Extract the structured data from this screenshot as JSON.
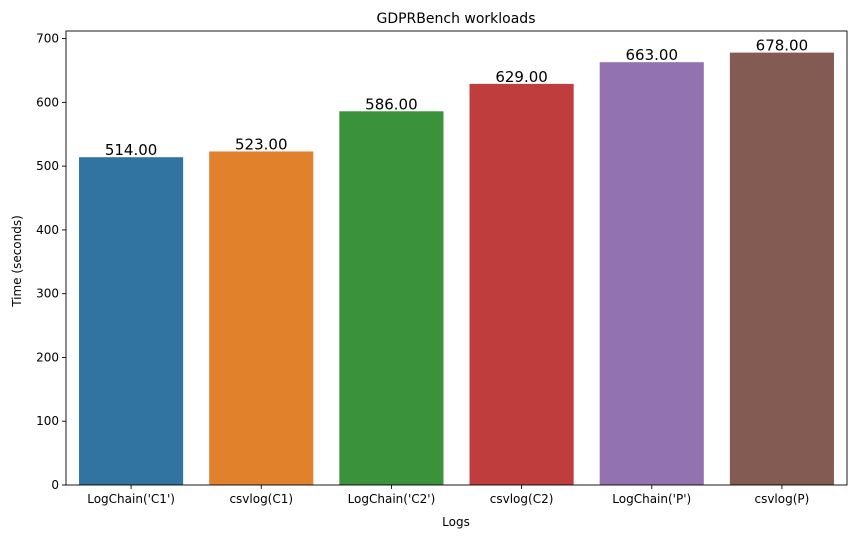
{
  "chart_data": {
    "type": "bar",
    "title": "GDPRBench workloads",
    "xlabel": "Logs",
    "ylabel": "Time (seconds)",
    "categories": [
      "LogChain('C1')",
      "csvlog(C1)",
      "LogChain('C2')",
      "csvlog(C2)",
      "LogChain('P')",
      "csvlog(P)"
    ],
    "values": [
      514,
      523,
      586,
      629,
      663,
      678
    ],
    "value_labels": [
      "514.00",
      "523.00",
      "586.00",
      "629.00",
      "663.00",
      "678.00"
    ],
    "colors": [
      "#3274a1",
      "#e1812c",
      "#3a923a",
      "#c03d3e",
      "#9372b2",
      "#845b53"
    ],
    "ylim": [
      0,
      711.9
    ],
    "yticks": [
      0,
      100,
      200,
      300,
      400,
      500,
      600,
      700
    ],
    "ytick_labels": [
      "0",
      "100",
      "200",
      "300",
      "400",
      "500",
      "600",
      "700"
    ],
    "grid": false,
    "legend": "none"
  }
}
